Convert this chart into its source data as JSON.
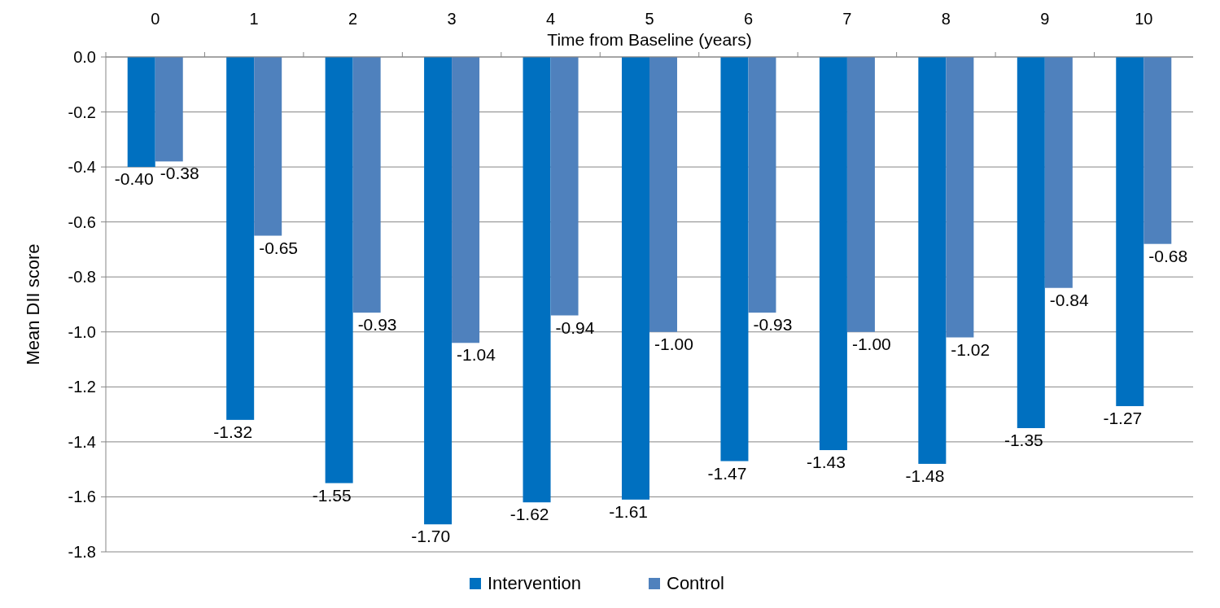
{
  "chart_data": {
    "type": "bar",
    "xlabel": "Time from Baseline (years)",
    "ylabel": "Mean DII score",
    "categories": [
      "0",
      "1",
      "2",
      "3",
      "4",
      "5",
      "6",
      "7",
      "8",
      "9",
      "10"
    ],
    "series": [
      {
        "name": "Intervention",
        "color": "#0070c0",
        "values": [
          -0.4,
          -1.32,
          -1.55,
          -1.7,
          -1.62,
          -1.61,
          -1.47,
          -1.43,
          -1.48,
          -1.35,
          -1.27
        ],
        "value_labels": [
          "-0.40",
          "-1.32",
          "-1.55",
          "-1.70",
          "-1.62",
          "-1.61",
          "-1.47",
          "-1.43",
          "-1.48",
          "-1.35",
          "-1.27"
        ]
      },
      {
        "name": "Control",
        "color": "#4f81bd",
        "values": [
          -0.38,
          -0.65,
          -0.93,
          -1.04,
          -0.94,
          -1.0,
          -0.93,
          -1.0,
          -1.02,
          -0.84,
          -0.68
        ],
        "value_labels": [
          "-0.38",
          "-0.65",
          "-0.93",
          "-1.04",
          "-0.94",
          "-1.00",
          "-0.93",
          "-1.00",
          "-1.02",
          "-0.84",
          "-0.68"
        ]
      }
    ],
    "ylim": [
      -1.8,
      0
    ],
    "yticks": [
      {
        "value": 0,
        "label": "0.0"
      },
      -0.2,
      -0.4,
      -0.6,
      -0.8,
      {
        "value": -1,
        "label": "-1.0"
      },
      -1.2,
      -1.4,
      -1.6,
      -1.8
    ],
    "grid": "y",
    "legend": "bottom"
  }
}
